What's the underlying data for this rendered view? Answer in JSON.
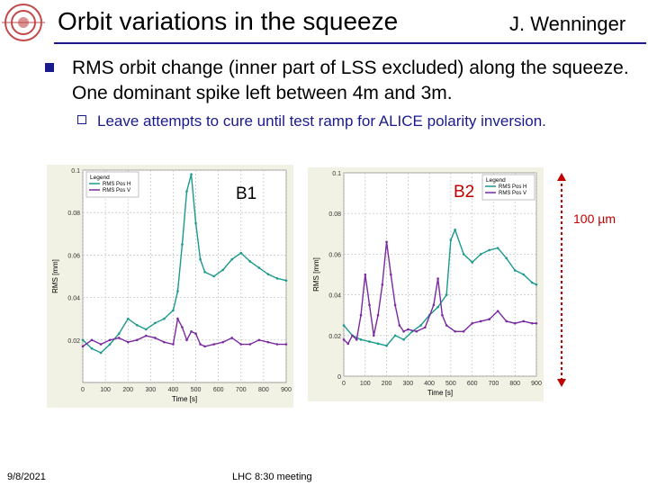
{
  "slide": {
    "title": "Orbit variations in the squeeze",
    "author": "J. Wenninger",
    "bullet_main": "RMS orbit change (inner part of LSS excluded) along the squeeze. One dominant spike left between 4m and 3m.",
    "bullet_sub": "Leave attempts to cure until test ramp for ALICE polarity inversion.",
    "b1_label": "B1",
    "b2_label": "B2",
    "scale_label": "100 µm",
    "date": "9/8/2021",
    "footer": "LHC 8:30 meeting"
  },
  "colors": {
    "accent": "#1a1a8c",
    "red": "#c00000",
    "teal": "#1a9a8c",
    "purple": "#7a2aa0"
  },
  "chart_data": [
    {
      "type": "line",
      "title": "B1",
      "xlabel": "Time [s]",
      "ylabel": "RMS [mm]",
      "xlim": [
        0,
        900
      ],
      "ylim": [
        0,
        0.1
      ],
      "xticks": [
        0,
        100,
        200,
        300,
        400,
        500,
        600,
        700,
        800,
        900
      ],
      "yticks": [
        0.02,
        0.04,
        0.06,
        0.08,
        0.1
      ],
      "legend": {
        "title": "Legend",
        "position": "top-left"
      },
      "series": [
        {
          "name": "RMS Pos H",
          "color": "#1a9a8c",
          "x": [
            0,
            40,
            80,
            120,
            160,
            200,
            240,
            280,
            320,
            360,
            400,
            420,
            440,
            460,
            480,
            500,
            520,
            540,
            580,
            620,
            660,
            700,
            740,
            780,
            820,
            860,
            900
          ],
          "y": [
            0.02,
            0.016,
            0.014,
            0.018,
            0.023,
            0.03,
            0.027,
            0.025,
            0.028,
            0.03,
            0.034,
            0.043,
            0.065,
            0.09,
            0.098,
            0.075,
            0.058,
            0.052,
            0.05,
            0.053,
            0.058,
            0.061,
            0.057,
            0.054,
            0.051,
            0.049,
            0.048
          ]
        },
        {
          "name": "RMS Pos V",
          "color": "#7a2aa0",
          "x": [
            0,
            40,
            80,
            120,
            160,
            200,
            240,
            280,
            320,
            360,
            400,
            420,
            440,
            460,
            480,
            500,
            520,
            540,
            580,
            620,
            660,
            700,
            740,
            780,
            820,
            860,
            900
          ],
          "y": [
            0.017,
            0.02,
            0.018,
            0.02,
            0.021,
            0.019,
            0.02,
            0.022,
            0.021,
            0.019,
            0.018,
            0.03,
            0.026,
            0.02,
            0.024,
            0.023,
            0.018,
            0.017,
            0.018,
            0.019,
            0.021,
            0.018,
            0.018,
            0.02,
            0.019,
            0.018,
            0.018
          ]
        }
      ]
    },
    {
      "type": "line",
      "title": "B2",
      "xlabel": "Time [s]",
      "ylabel": "RMS [mm]",
      "xlim": [
        0,
        900
      ],
      "ylim": [
        0,
        0.1
      ],
      "xticks": [
        0,
        100,
        200,
        300,
        400,
        500,
        600,
        700,
        800,
        900
      ],
      "yticks": [
        0,
        0.02,
        0.04,
        0.06,
        0.08,
        0.1
      ],
      "legend": {
        "title": "Legend",
        "position": "top-right"
      },
      "series": [
        {
          "name": "RMS Pos H",
          "color": "#1a9a8c",
          "x": [
            0,
            40,
            80,
            120,
            160,
            200,
            240,
            280,
            320,
            360,
            400,
            440,
            480,
            500,
            520,
            560,
            600,
            640,
            680,
            720,
            760,
            800,
            840,
            880,
            900
          ],
          "y": [
            0.025,
            0.02,
            0.018,
            0.017,
            0.016,
            0.015,
            0.02,
            0.018,
            0.022,
            0.025,
            0.03,
            0.034,
            0.04,
            0.067,
            0.072,
            0.06,
            0.056,
            0.06,
            0.062,
            0.063,
            0.058,
            0.052,
            0.05,
            0.046,
            0.045
          ]
        },
        {
          "name": "RMS Pos V",
          "color": "#7a2aa0",
          "x": [
            0,
            20,
            40,
            60,
            80,
            100,
            120,
            140,
            160,
            180,
            200,
            220,
            240,
            260,
            280,
            300,
            340,
            380,
            420,
            440,
            460,
            480,
            520,
            560,
            600,
            640,
            680,
            720,
            760,
            800,
            840,
            880,
            900
          ],
          "y": [
            0.018,
            0.016,
            0.02,
            0.018,
            0.03,
            0.05,
            0.035,
            0.02,
            0.03,
            0.045,
            0.066,
            0.05,
            0.035,
            0.025,
            0.022,
            0.023,
            0.022,
            0.024,
            0.035,
            0.048,
            0.03,
            0.025,
            0.022,
            0.022,
            0.026,
            0.027,
            0.028,
            0.032,
            0.027,
            0.026,
            0.027,
            0.026,
            0.026
          ]
        }
      ]
    }
  ]
}
